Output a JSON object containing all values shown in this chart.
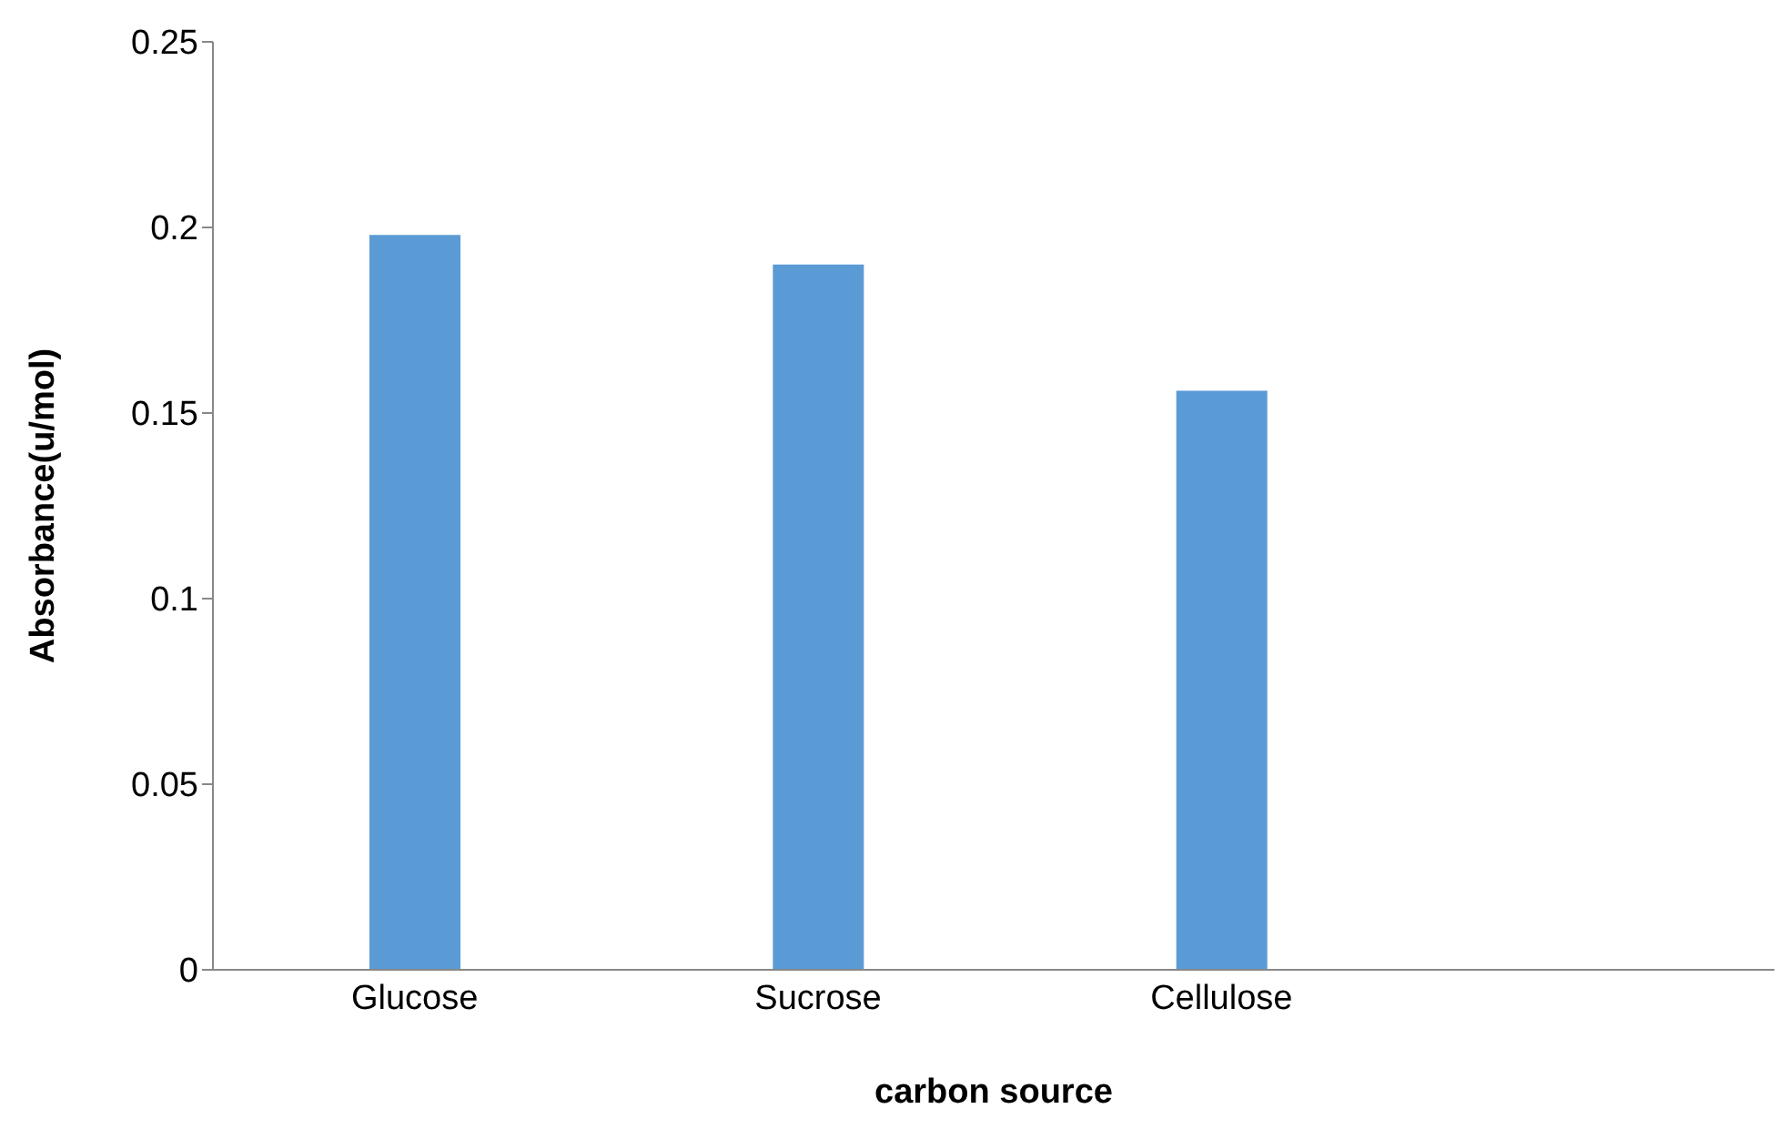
{
  "chart_data": {
    "type": "bar",
    "xlabel": "carbon source",
    "ylabel": "Absorbance(u/mol)",
    "categories": [
      "Glucose",
      "Sucrose",
      "Cellulose"
    ],
    "values": [
      0.198,
      0.19,
      0.156
    ],
    "color": "#5b9bd5",
    "ylim": [
      0,
      0.25
    ],
    "yticks": [
      0,
      0.05,
      0.1,
      0.15,
      0.2,
      0.25
    ],
    "grid": false,
    "legend": false
  }
}
